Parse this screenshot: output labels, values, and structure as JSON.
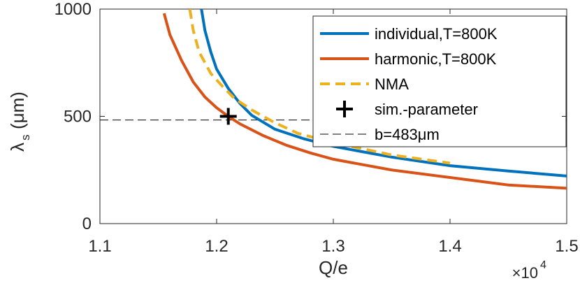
{
  "chart_data": {
    "type": "line",
    "x_label": "Q/e",
    "x_multiplier": {
      "base": "×10",
      "exponent": "4"
    },
    "y_label": {
      "symbol": "λ",
      "subscript": "s",
      "unit": "(μm)"
    },
    "xlim": [
      1.1,
      1.5
    ],
    "xticks": [
      1.1,
      1.2,
      1.3,
      1.4,
      1.5
    ],
    "ylim": [
      0,
      1000
    ],
    "yticks": [
      0,
      500,
      1000
    ],
    "grid": false,
    "legend": "upper right",
    "series": [
      {
        "name": "individual,T=800K",
        "color": "#0072bd",
        "style": "solid",
        "x": [
          1.187,
          1.19,
          1.195,
          1.2,
          1.21,
          1.22,
          1.23,
          1.25,
          1.275,
          1.3,
          1.35,
          1.4,
          1.45,
          1.5
        ],
        "values": [
          1000,
          900,
          800,
          720,
          630,
          560,
          505,
          440,
          395,
          360,
          310,
          270,
          245,
          222
        ]
      },
      {
        "name": "harmonic,T=800K",
        "color": "#d95319",
        "style": "solid",
        "x": [
          1.155,
          1.16,
          1.17,
          1.18,
          1.19,
          1.2,
          1.21,
          1.22,
          1.24,
          1.26,
          1.28,
          1.3,
          1.35,
          1.4,
          1.45,
          1.5
        ],
        "values": [
          980,
          880,
          760,
          660,
          590,
          540,
          500,
          465,
          410,
          365,
          330,
          300,
          250,
          215,
          180,
          165
        ]
      },
      {
        "name": "NMA",
        "color": "#edb120",
        "style": "dashed",
        "x": [
          1.177,
          1.18,
          1.185,
          1.195,
          1.205,
          1.215,
          1.23,
          1.25,
          1.27,
          1.3,
          1.35,
          1.4
        ],
        "values": [
          1000,
          900,
          800,
          700,
          640,
          585,
          530,
          470,
          420,
          378,
          320,
          282
        ]
      }
    ],
    "points": [
      {
        "name": "sim.-parameter",
        "color": "#000000",
        "x": 1.21,
        "y": 500
      }
    ],
    "hlines": [
      {
        "name": "b=483μm",
        "color": "#000000",
        "value": 483
      }
    ]
  }
}
